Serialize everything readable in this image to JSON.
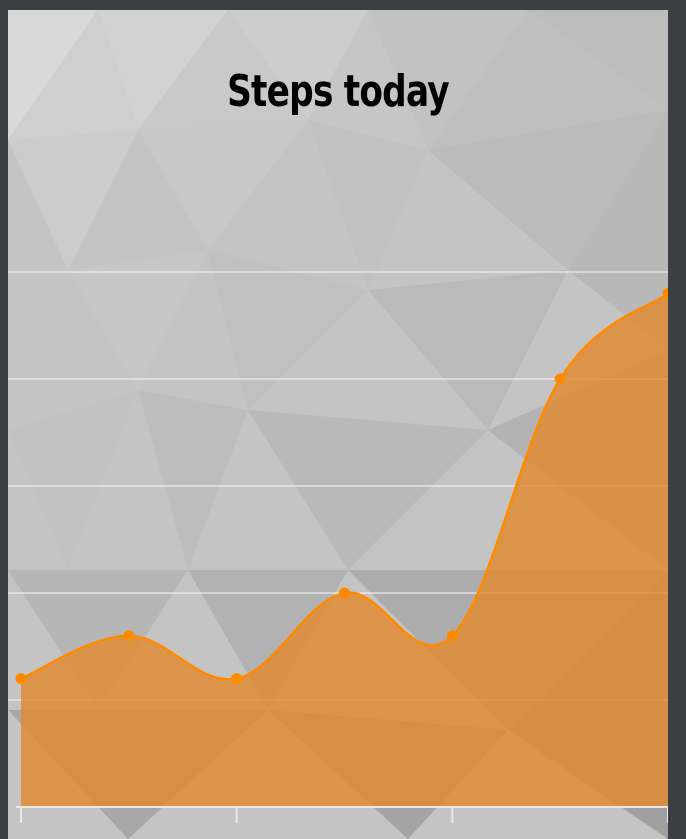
{
  "chart_data": {
    "type": "area",
    "title": "Steps today",
    "x": [
      0,
      1,
      2,
      3,
      4,
      5,
      6
    ],
    "series": [
      {
        "values": [
          600,
          800,
          600,
          1000,
          800,
          2000,
          2400
        ]
      }
    ],
    "ylim": [
      0,
      2500
    ],
    "grid": true,
    "legend": "none",
    "colors": {
      "line": "#ff8a00",
      "fill": "#e08a30",
      "grid": "#ececec",
      "axis": "#e8e8e8",
      "background": "#c4c4c4",
      "frame": "#3b3f43"
    }
  }
}
